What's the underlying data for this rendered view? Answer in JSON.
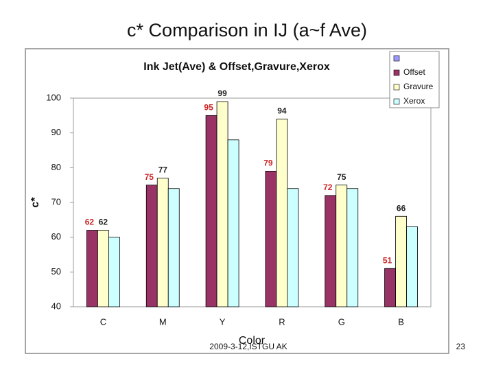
{
  "slide_title": "c*  Comparison in IJ (a~f Ave)",
  "footer": "2009-3-12,ISTGU AK",
  "page_number": "23",
  "chart_data": {
    "type": "bar",
    "title": "Ink Jet(Ave) & Offset,Gravure,Xerox",
    "x_label": "Color",
    "y_label": "c*",
    "categories": [
      "C",
      "M",
      "Y",
      "R",
      "G",
      "B"
    ],
    "series": [
      {
        "name": "Offset",
        "color": "#993366",
        "labels": true,
        "label_color": "#cc2222",
        "values": [
          62,
          75,
          95,
          79,
          72,
          51
        ]
      },
      {
        "name": "Gravure",
        "color": "#ffffcc",
        "labels": true,
        "label_color": "#222222",
        "values": [
          62,
          77,
          99,
          94,
          75,
          66
        ]
      },
      {
        "name": "Xerox",
        "color": "#ccffff",
        "labels": false,
        "label_color": "#222222",
        "values": [
          60,
          74,
          88,
          74,
          74,
          63
        ]
      }
    ],
    "ylim": [
      40,
      100
    ],
    "yticks": [
      40,
      50,
      60,
      70,
      80,
      90,
      100
    ],
    "grid": false,
    "legend": "top-right"
  }
}
